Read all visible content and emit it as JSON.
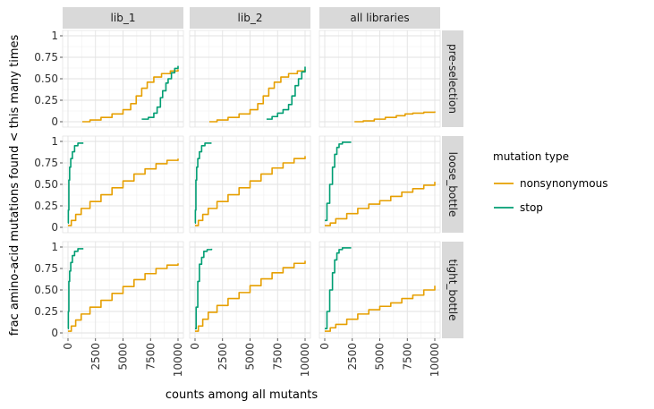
{
  "chart_data": {
    "type": "line",
    "subtype": "step-ecdf-faceted",
    "xlabel": "counts among all mutants",
    "ylabel": "frac amino-acid mutations found < this many times",
    "xlim": [
      0,
      10000
    ],
    "ylim": [
      0,
      1
    ],
    "xticks": [
      0,
      2500,
      5000,
      7500,
      10000
    ],
    "xtick_labels": [
      "0",
      "2500",
      "5000",
      "7500",
      "10000"
    ],
    "yticks": [
      0,
      0.25,
      0.5,
      0.75,
      1
    ],
    "ytick_labels": [
      "0",
      "0.25",
      "0.50",
      "0.75",
      "1"
    ],
    "grid": true,
    "legend_position": "right",
    "legend_title": "mutation type",
    "columns": [
      "lib_1",
      "lib_2",
      "all libraries"
    ],
    "rows": [
      "pre-selection",
      "loose_bottle",
      "tight_bottle"
    ],
    "series_styles": [
      {
        "name": "nonsynonymous",
        "color": "#E69F00"
      },
      {
        "name": "stop",
        "color": "#009E73"
      }
    ],
    "panels": [
      {
        "column": "lib_1",
        "row": "pre-selection",
        "series": [
          {
            "name": "nonsynonymous",
            "x": [
              1300,
              2000,
              3000,
              4000,
              5000,
              5700,
              6200,
              6700,
              7200,
              7800,
              8500,
              9300,
              10000
            ],
            "y": [
              0,
              0.02,
              0.05,
              0.09,
              0.14,
              0.21,
              0.3,
              0.39,
              0.46,
              0.52,
              0.56,
              0.59,
              0.61
            ]
          },
          {
            "name": "stop",
            "x": [
              6700,
              7300,
              7800,
              8100,
              8400,
              8600,
              8900,
              9100,
              9400,
              9700,
              10000
            ],
            "y": [
              0.03,
              0.05,
              0.1,
              0.17,
              0.28,
              0.36,
              0.45,
              0.5,
              0.57,
              0.62,
              0.65
            ]
          }
        ]
      },
      {
        "column": "lib_2",
        "row": "pre-selection",
        "series": [
          {
            "name": "nonsynonymous",
            "x": [
              1300,
              2000,
              3000,
              4000,
              5000,
              5700,
              6200,
              6700,
              7200,
              7800,
              8500,
              9300,
              10000
            ],
            "y": [
              0,
              0.02,
              0.05,
              0.09,
              0.14,
              0.21,
              0.3,
              0.39,
              0.46,
              0.52,
              0.56,
              0.59,
              0.61
            ]
          },
          {
            "name": "stop",
            "x": [
              6500,
              7000,
              7500,
              8000,
              8500,
              8800,
              9100,
              9400,
              9700,
              10000
            ],
            "y": [
              0.03,
              0.06,
              0.1,
              0.14,
              0.2,
              0.3,
              0.42,
              0.5,
              0.58,
              0.64
            ]
          }
        ]
      },
      {
        "column": "all libraries",
        "row": "pre-selection",
        "series": [
          {
            "name": "nonsynonymous",
            "x": [
              2700,
              3500,
              4500,
              5500,
              6500,
              7300,
              8000,
              9000,
              10000
            ],
            "y": [
              0,
              0.01,
              0.03,
              0.05,
              0.07,
              0.09,
              0.1,
              0.11,
              0.12
            ]
          }
        ]
      },
      {
        "column": "lib_1",
        "row": "loose_bottle",
        "series": [
          {
            "name": "nonsynonymous",
            "x": [
              0,
              300,
              700,
              1200,
              2000,
              3000,
              4000,
              5000,
              6000,
              7000,
              8000,
              9000,
              10000
            ],
            "y": [
              0.02,
              0.08,
              0.15,
              0.22,
              0.3,
              0.38,
              0.46,
              0.54,
              0.62,
              0.68,
              0.74,
              0.78,
              0.8
            ]
          },
          {
            "name": "stop",
            "x": [
              0,
              30,
              80,
              150,
              250,
              400,
              600,
              900,
              1400
            ],
            "y": [
              0.05,
              0.2,
              0.55,
              0.7,
              0.8,
              0.88,
              0.95,
              0.98,
              0.98
            ]
          }
        ]
      },
      {
        "column": "lib_2",
        "row": "loose_bottle",
        "series": [
          {
            "name": "nonsynonymous",
            "x": [
              0,
              300,
              700,
              1200,
              2000,
              3000,
              4000,
              5000,
              6000,
              7000,
              8000,
              9000,
              10000
            ],
            "y": [
              0.02,
              0.08,
              0.15,
              0.22,
              0.3,
              0.38,
              0.46,
              0.54,
              0.62,
              0.69,
              0.75,
              0.8,
              0.83
            ]
          },
          {
            "name": "stop",
            "x": [
              0,
              30,
              80,
              150,
              250,
              400,
              600,
              900,
              1500
            ],
            "y": [
              0.05,
              0.2,
              0.55,
              0.7,
              0.8,
              0.88,
              0.95,
              0.98,
              0.98
            ]
          }
        ]
      },
      {
        "column": "all libraries",
        "row": "loose_bottle",
        "series": [
          {
            "name": "nonsynonymous",
            "x": [
              0,
              500,
              1000,
              2000,
              3000,
              4000,
              5000,
              6000,
              7000,
              8000,
              9000,
              10000
            ],
            "y": [
              0.02,
              0.05,
              0.1,
              0.16,
              0.22,
              0.27,
              0.31,
              0.36,
              0.41,
              0.45,
              0.49,
              0.53
            ]
          },
          {
            "name": "stop",
            "x": [
              0,
              200,
              450,
              700,
              900,
              1100,
              1300,
              1600,
              2000,
              2400
            ],
            "y": [
              0.08,
              0.28,
              0.5,
              0.7,
              0.85,
              0.93,
              0.97,
              0.99,
              0.99,
              0.99
            ]
          }
        ]
      },
      {
        "column": "lib_1",
        "row": "tight_bottle",
        "series": [
          {
            "name": "nonsynonymous",
            "x": [
              0,
              300,
              700,
              1200,
              2000,
              3000,
              4000,
              5000,
              6000,
              7000,
              8000,
              9000,
              10000
            ],
            "y": [
              0.02,
              0.08,
              0.15,
              0.22,
              0.3,
              0.38,
              0.46,
              0.54,
              0.62,
              0.69,
              0.75,
              0.79,
              0.81
            ]
          },
          {
            "name": "stop",
            "x": [
              0,
              30,
              80,
              150,
              250,
              400,
              600,
              900,
              1400
            ],
            "y": [
              0.05,
              0.25,
              0.6,
              0.72,
              0.82,
              0.9,
              0.95,
              0.98,
              0.98
            ]
          }
        ]
      },
      {
        "column": "lib_2",
        "row": "tight_bottle",
        "series": [
          {
            "name": "nonsynonymous",
            "x": [
              0,
              300,
              700,
              1200,
              2000,
              3000,
              4000,
              5000,
              6000,
              7000,
              8000,
              9000,
              10000
            ],
            "y": [
              0.02,
              0.08,
              0.16,
              0.24,
              0.32,
              0.4,
              0.47,
              0.55,
              0.63,
              0.7,
              0.76,
              0.81,
              0.84
            ]
          },
          {
            "name": "stop",
            "x": [
              0,
              100,
              250,
              400,
              600,
              800,
              1100,
              1500
            ],
            "y": [
              0.05,
              0.3,
              0.6,
              0.8,
              0.88,
              0.95,
              0.97,
              0.98
            ]
          }
        ]
      },
      {
        "column": "all libraries",
        "row": "tight_bottle",
        "series": [
          {
            "name": "nonsynonymous",
            "x": [
              0,
              500,
              1000,
              2000,
              3000,
              4000,
              5000,
              6000,
              7000,
              8000,
              9000,
              10000
            ],
            "y": [
              0.02,
              0.06,
              0.1,
              0.16,
              0.22,
              0.27,
              0.31,
              0.35,
              0.4,
              0.44,
              0.5,
              0.55
            ]
          },
          {
            "name": "stop",
            "x": [
              0,
              200,
              450,
              700,
              900,
              1100,
              1300,
              1600,
              2000,
              2400
            ],
            "y": [
              0.05,
              0.25,
              0.5,
              0.7,
              0.85,
              0.93,
              0.97,
              0.99,
              0.99,
              0.99
            ]
          }
        ]
      }
    ]
  }
}
